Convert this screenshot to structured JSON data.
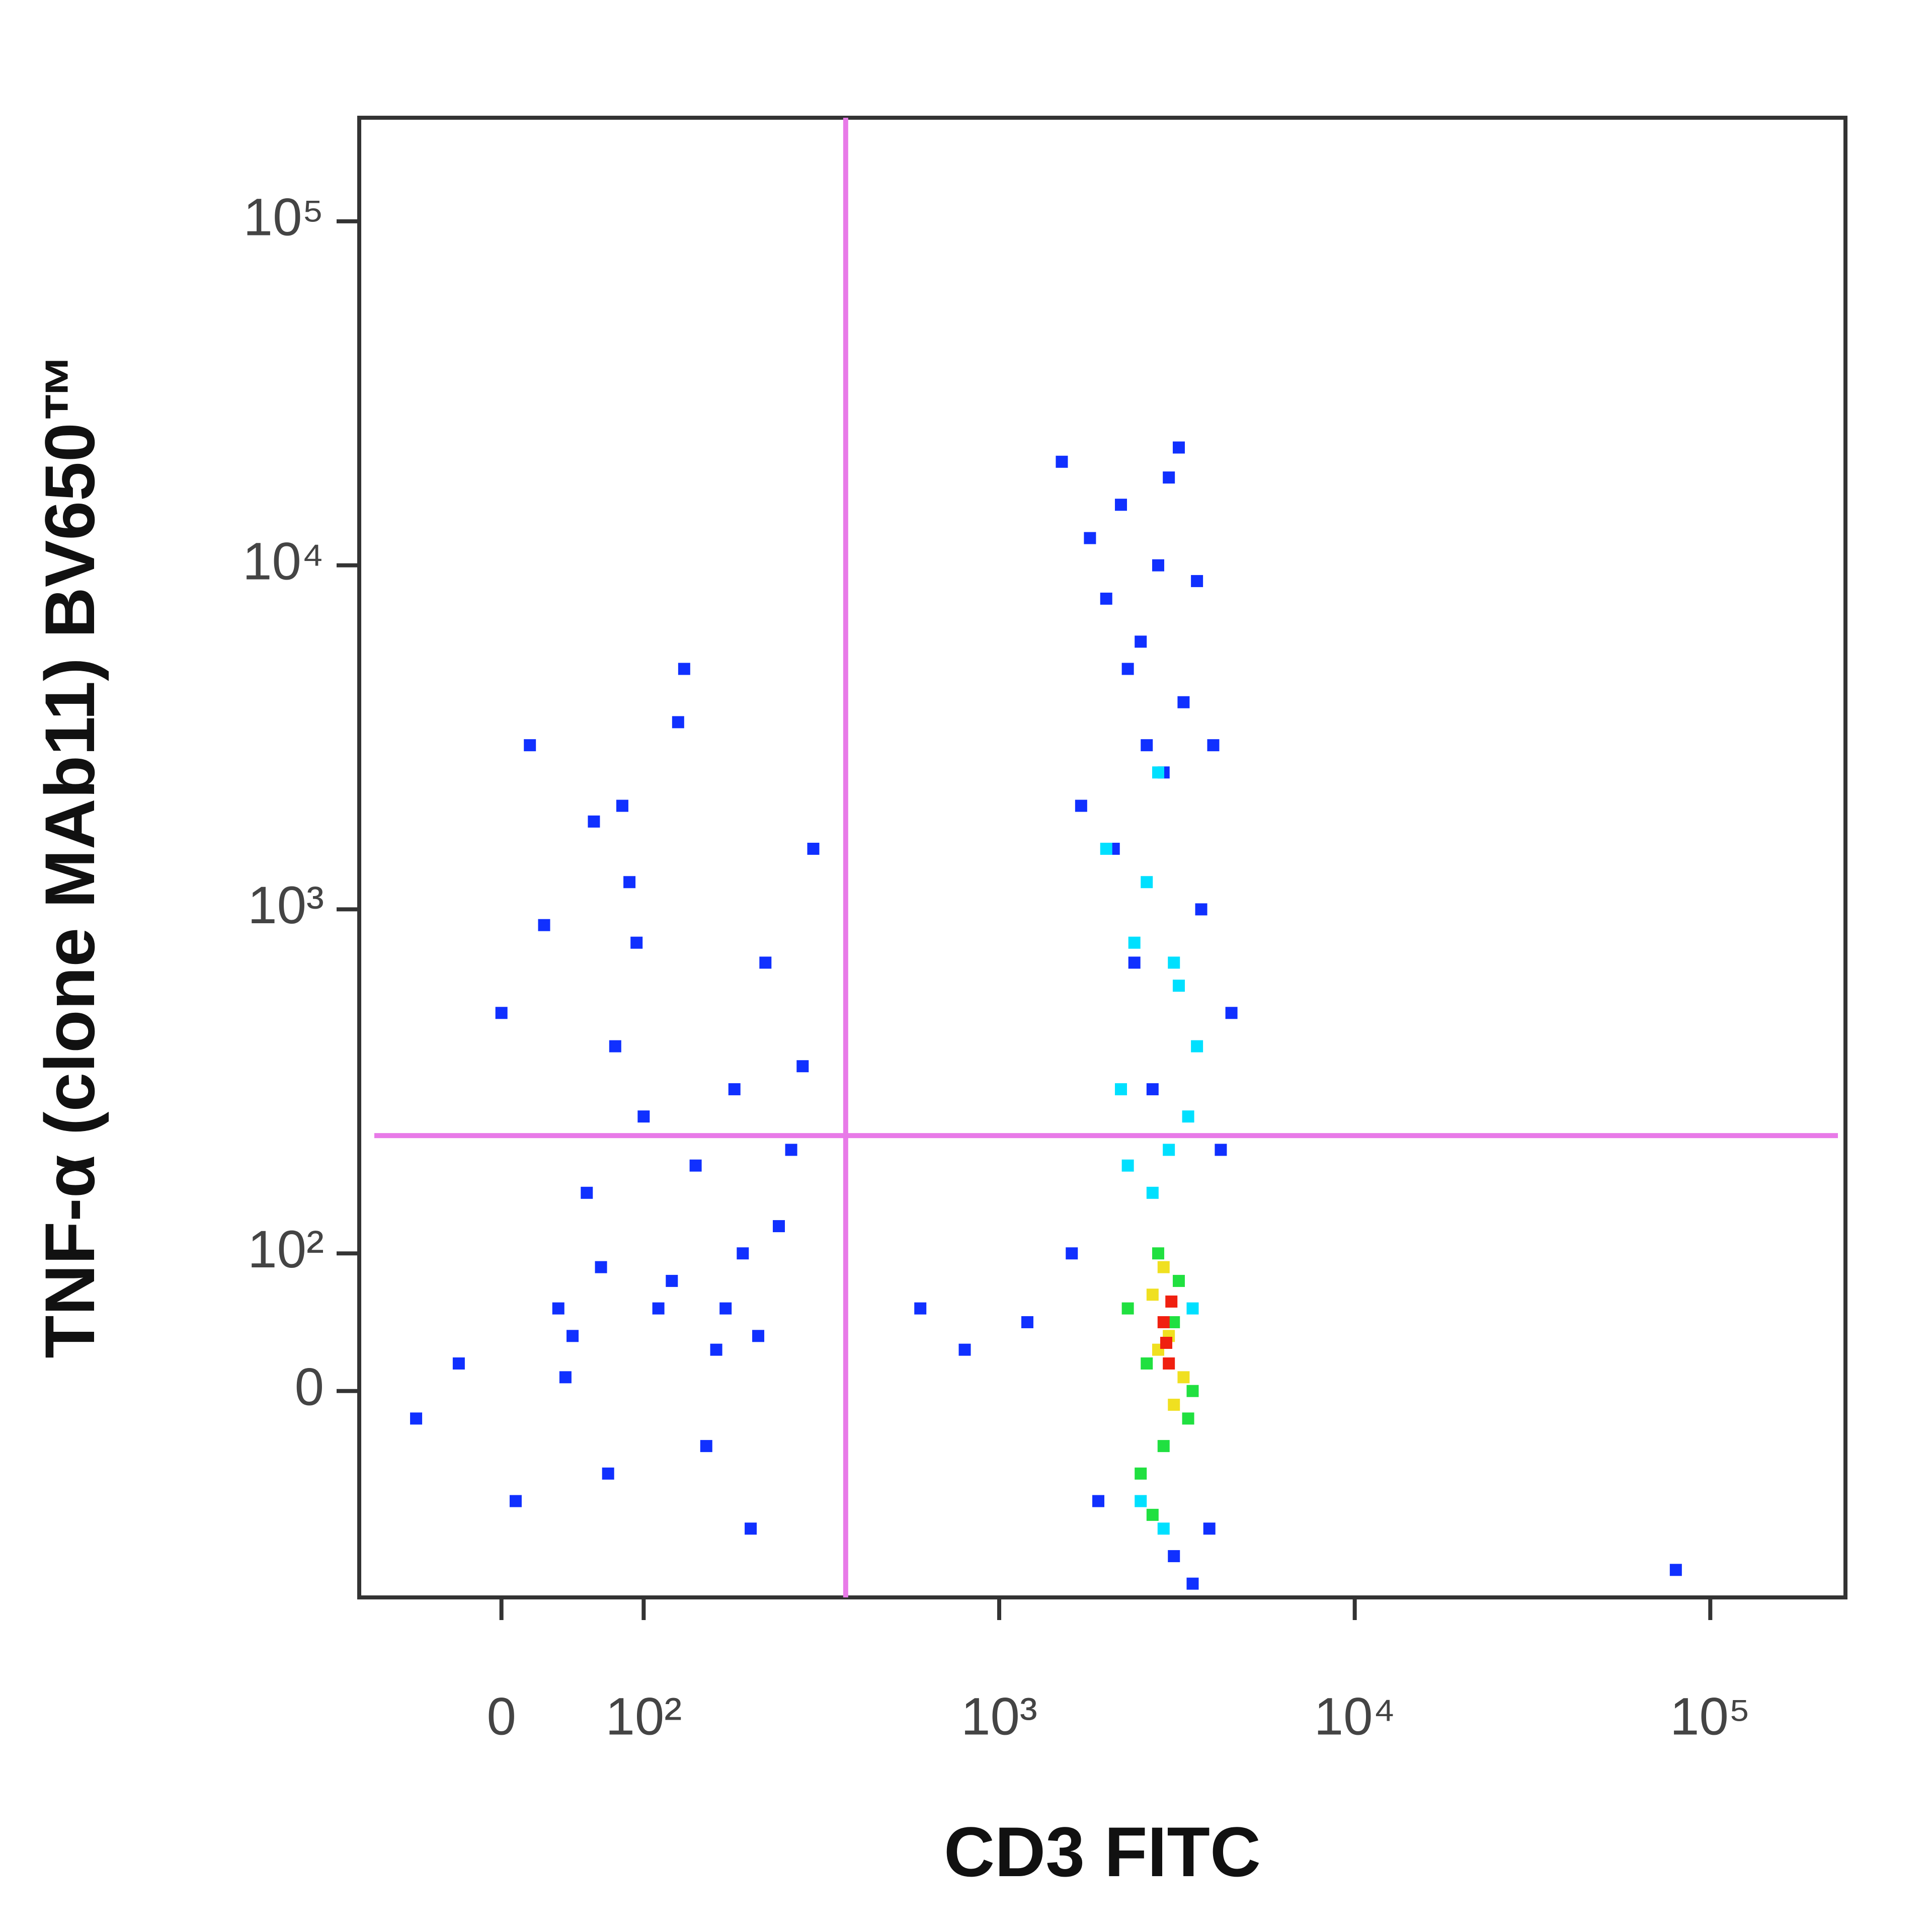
{
  "chart_data": {
    "type": "scatter",
    "x_label": "CD3 FITC",
    "y_label": "TNF-α (clone MAb11) BV650™",
    "xscale": "logicle",
    "yscale": "logicle",
    "xlim": [
      -100,
      240000
    ],
    "ylim": [
      -150,
      200000
    ],
    "xticks": [
      0,
      {
        "value": 100,
        "label": "10²"
      },
      {
        "value": 1000,
        "label": "10³"
      },
      {
        "value": 10000,
        "label": "10⁴"
      },
      {
        "value": 100000,
        "label": "10⁵"
      }
    ],
    "yticks": [
      0,
      {
        "value": 100,
        "label": "10²"
      },
      {
        "value": 1000,
        "label": "10³"
      },
      {
        "value": 10000,
        "label": "10⁴"
      },
      {
        "value": 100000,
        "label": "10⁵"
      }
    ],
    "gates": {
      "x": 370,
      "y": 220,
      "color": "#e87ae8"
    },
    "series": [
      {
        "color": "#1030ff",
        "x": [
          -30,
          10,
          40,
          60,
          80,
          90,
          120,
          150,
          180,
          220,
          260,
          300,
          20,
          50,
          70,
          100,
          130,
          160,
          200,
          240,
          -60,
          0,
          30,
          85,
          110,
          140,
          190,
          280,
          45,
          75,
          95,
          125,
          170,
          210,
          65
        ],
        "y": [
          20,
          -80,
          60,
          150,
          400,
          1200,
          80,
          -40,
          300,
          700,
          200,
          1500,
          3000,
          40,
          90,
          250,
          5000,
          30,
          -100,
          120,
          -20,
          500,
          900,
          2000,
          60,
          180,
          100,
          350,
          10,
          -60,
          800,
          3500,
          60,
          40,
          1800
        ]
      },
      {
        "color": "#1030ff",
        "x": [
          1500,
          1800,
          2000,
          2200,
          2500,
          2800,
          3000,
          3300,
          3600,
          4000,
          4500,
          1700,
          2100,
          2400,
          2700,
          3100,
          3500,
          3900,
          1600,
          1900,
          2300,
          2600,
          2900,
          3200,
          3700,
          4200,
          1200,
          800,
          600,
          80000
        ],
        "y": [
          20000,
          12000,
          8000,
          15000,
          6000,
          10000,
          18000,
          4000,
          9000,
          3000,
          500,
          2000,
          1500,
          700,
          300,
          -120,
          -140,
          -100,
          100,
          -80,
          5000,
          3000,
          2500,
          22000,
          1000,
          200,
          50,
          30,
          60,
          -130
        ]
      },
      {
        "color": "#00e0ff",
        "x": [
          2000,
          2400,
          2800,
          3200,
          3600,
          2200,
          2600,
          3000,
          3400,
          2500,
          2900,
          2300,
          2700,
          3100,
          3500
        ],
        "y": [
          1500,
          800,
          2500,
          600,
          400,
          300,
          1200,
          200,
          250,
          -80,
          -100,
          180,
          150,
          700,
          60
        ]
      },
      {
        "color": "#20e040",
        "x": [
          2300,
          2600,
          2900,
          3200,
          3500,
          2500,
          2800,
          3100,
          3400,
          2700
        ],
        "y": [
          60,
          20,
          -40,
          80,
          0,
          -60,
          100,
          50,
          -20,
          -90
        ]
      },
      {
        "color": "#f0e020",
        "x": [
          2700,
          3000,
          3300,
          2900,
          3100,
          2800
        ],
        "y": [
          70,
          40,
          10,
          90,
          -10,
          30
        ]
      },
      {
        "color": "#f02010",
        "x": [
          2900,
          3000,
          3050,
          2950
        ],
        "y": [
          50,
          20,
          65,
          35
        ]
      }
    ]
  }
}
